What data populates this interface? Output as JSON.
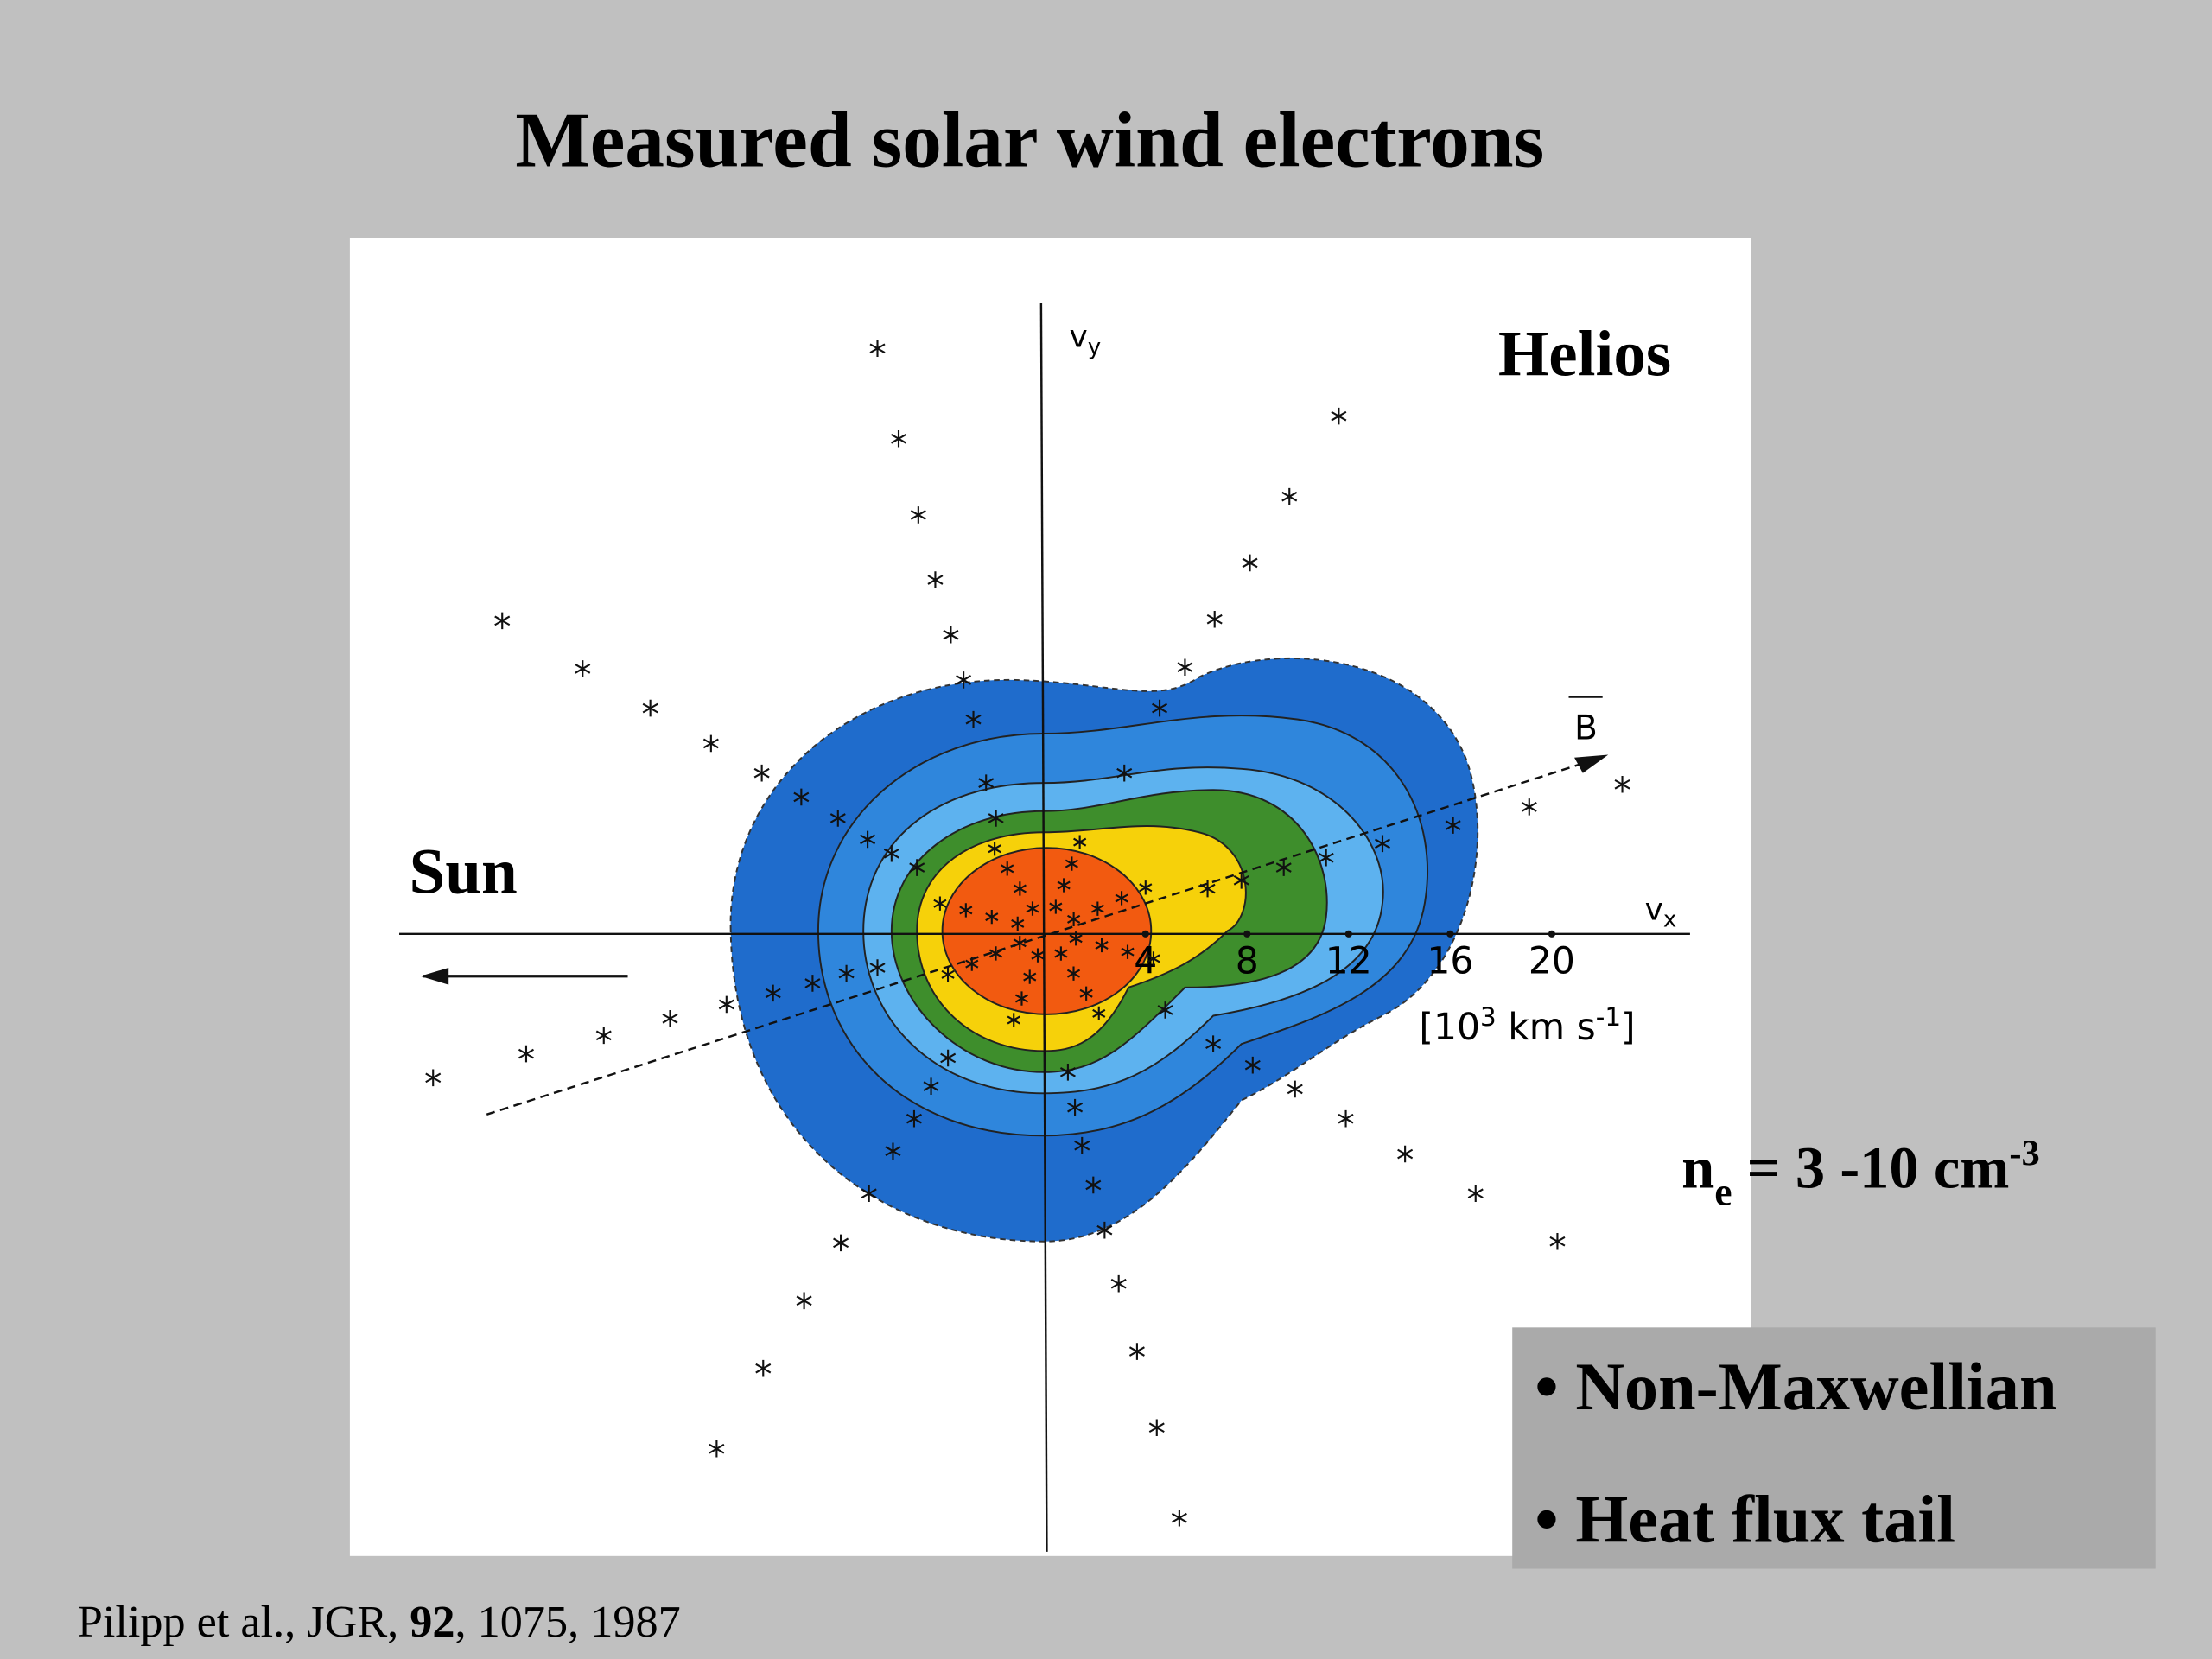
{
  "title": "Measured solar wind electrons",
  "figure": {
    "instrument": "Helios",
    "sun": "Sun",
    "vy": {
      "base": "v",
      "sub": "y"
    },
    "vx": {
      "base": "v",
      "sub": "x"
    },
    "b_vector": "B",
    "x_ticks": [
      4,
      8,
      12,
      16,
      20
    ],
    "units": {
      "open": "[10",
      "sup1": "3",
      "mid": " km s",
      "sup2": "-1",
      "close": "]"
    }
  },
  "density": {
    "base": "n",
    "sub": "e",
    "text": " = 3 -10 cm",
    "sup": "-3"
  },
  "bullets": [
    "• Non-Maxwellian",
    "• Heat flux tail"
  ],
  "citation": {
    "authors": "Pilipp et al., JGR, ",
    "volume": "92",
    "rest": ", 1075, 1987"
  }
}
